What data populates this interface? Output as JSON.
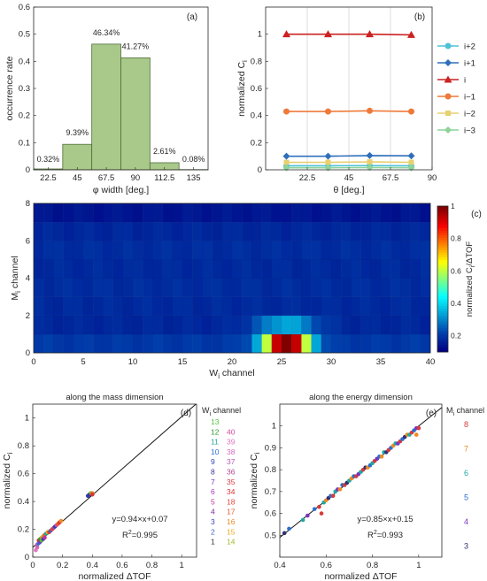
{
  "figure": {
    "panel_labels": [
      "(a)",
      "(b)",
      "(c)",
      "(d)",
      "(e)"
    ]
  },
  "chart_data": [
    {
      "id": "a",
      "type": "bar",
      "categories": [
        "22.5",
        "45",
        "67.5",
        "90",
        "112.5",
        "135"
      ],
      "bin_edges": [
        11.25,
        33.75,
        56.25,
        78.75,
        101.25,
        123.75,
        146.25
      ],
      "values": [
        0.0032,
        0.0939,
        0.4634,
        0.4127,
        0.0261,
        0.0008
      ],
      "data_labels": [
        "0.32%",
        "9.39%",
        "46.34%",
        "41.27%",
        "2.61%",
        "0.08%"
      ],
      "xlabel": "φ width [deg.]",
      "ylabel": "occurrence rate",
      "xlim": [
        11.25,
        146.25
      ],
      "ylim": [
        0,
        0.6
      ],
      "yticks": [
        "0",
        "0.1",
        "0.2",
        "0.3",
        "0.4",
        "0.5",
        "0.6"
      ],
      "bar_color": "#a9c98a",
      "bar_edge": "#4f6b3a"
    },
    {
      "id": "b",
      "type": "line",
      "x": [
        11.25,
        33.75,
        56.25,
        78.75
      ],
      "xticks": [
        "22.5",
        "45",
        "67.5",
        "90"
      ],
      "xlabel": "θ [deg.]",
      "ylabel": "normalized C",
      "ylabel_sub": "i",
      "xlim": [
        0,
        90
      ],
      "ylim": [
        0,
        1.2
      ],
      "yticks": [
        "0",
        "0.2",
        "0.4",
        "0.6",
        "0.8",
        "1"
      ],
      "vgrid": [
        22.5,
        45,
        67.5
      ],
      "legend_position": "right",
      "series": [
        {
          "name": "i+2",
          "color": "#4ec3d6",
          "marker": "circle",
          "values": [
            0.03,
            0.03,
            0.031,
            0.03
          ]
        },
        {
          "name": "i+1",
          "color": "#2f6fba",
          "marker": "diamond",
          "values": [
            0.1,
            0.1,
            0.105,
            0.103
          ]
        },
        {
          "name": "i",
          "color": "#cc2222",
          "marker": "triangle",
          "values": [
            1.0,
            1.0,
            1.0,
            0.995
          ]
        },
        {
          "name": "i−1",
          "color": "#ee7a3a",
          "marker": "circle",
          "values": [
            0.43,
            0.43,
            0.435,
            0.43
          ]
        },
        {
          "name": "i−2",
          "color": "#e7d070",
          "marker": "square",
          "values": [
            0.055,
            0.055,
            0.058,
            0.055
          ]
        },
        {
          "name": "i−3",
          "color": "#8dd39a",
          "marker": "diamond",
          "values": [
            0.015,
            0.015,
            0.017,
            0.015
          ]
        }
      ]
    },
    {
      "id": "c",
      "type": "heatmap",
      "xlabel": "W",
      "xlabel_sub": "i",
      "xlabel_suffix": " channel",
      "ylabel": "M",
      "ylabel_sub": "i",
      "ylabel_suffix": " channel",
      "xlim": [
        0,
        40
      ],
      "ylim": [
        0,
        8
      ],
      "xticks": [
        "0",
        "5",
        "10",
        "15",
        "20",
        "25",
        "30",
        "35",
        "40"
      ],
      "yticks": [
        "0",
        "2",
        "4",
        "6",
        "8"
      ],
      "colorbar_label": "normalized C",
      "colorbar_label_sub": "i",
      "colorbar_label_suffix": "/ΔTOF",
      "colorbar_range": [
        0.1,
        1
      ],
      "colorbar_ticks": [
        "0.2",
        "0.4",
        "0.6",
        "0.8",
        "1"
      ],
      "row_base": [
        0.2,
        0.17,
        0.175,
        0.18,
        0.175,
        0.18,
        0.17,
        0.14
      ],
      "row0_peak": {
        "center": 25.5,
        "width": 2.2,
        "amplitude": 0.9
      },
      "row1_peak": {
        "center": 25.5,
        "width": 3.0,
        "amplitude": 0.17
      }
    },
    {
      "id": "d",
      "type": "scatter",
      "title": "along the mass dimension",
      "xlabel": "normalized ΔTOF",
      "ylabel": "normalized C",
      "ylabel_sub": "i",
      "xlim": [
        0,
        1.1
      ],
      "ylim": [
        0,
        1.1
      ],
      "xticks": [
        "0",
        "0.2",
        "0.4",
        "0.6",
        "0.8",
        "1"
      ],
      "yticks": [
        "0",
        "0.2",
        "0.4",
        "0.6",
        "0.8",
        "1"
      ],
      "fit": {
        "slope": 0.94,
        "intercept": 0.07,
        "equation": "y=0.94×x+0.07",
        "r2_label": "R",
        "r2_sup": "2",
        "r2_value": "=0.995"
      },
      "legend_title": "W",
      "legend_title_sub": "i",
      "legend_title_suffix": " channel",
      "legend": [
        {
          "left": "13",
          "right": "",
          "left_color": "#55c13a",
          "right_color": ""
        },
        {
          "left": "12",
          "right": "40",
          "left_color": "#2e9a2e",
          "right_color": "#d64a9c"
        },
        {
          "left": "11",
          "right": "39",
          "left_color": "#21a7a0",
          "right_color": "#e476c0"
        },
        {
          "left": "10",
          "right": "38",
          "left_color": "#2c6fcf",
          "right_color": "#d06bb8"
        },
        {
          "left": "9",
          "right": "37",
          "left_color": "#2e3fb2",
          "right_color": "#b25ab5"
        },
        {
          "left": "8",
          "right": "36",
          "left_color": "#3a2fa0",
          "right_color": "#b0448c"
        },
        {
          "left": "7",
          "right": "35",
          "left_color": "#7a35c0",
          "right_color": "#d63a3a"
        },
        {
          "left": "6",
          "right": "34",
          "left_color": "#a23ab8",
          "right_color": "#e03030"
        },
        {
          "left": "5",
          "right": "18",
          "left_color": "#c0309a",
          "right_color": "#e2473a"
        },
        {
          "left": "4",
          "right": "17",
          "left_color": "#7a2a9a",
          "right_color": "#ea5a28"
        },
        {
          "left": "3",
          "right": "16",
          "left_color": "#3a44b5",
          "right_color": "#f08a20"
        },
        {
          "left": "2",
          "right": "15",
          "left_color": "#4060c8",
          "right_color": "#f0a81c"
        },
        {
          "left": "1",
          "right": "14",
          "left_color": "#303030",
          "right_color": "#a0b82a"
        }
      ],
      "points": [
        {
          "x": 0.02,
          "y": 0.05,
          "c": "#e476c0"
        },
        {
          "x": 0.03,
          "y": 0.07,
          "c": "#d06bb8"
        },
        {
          "x": 0.03,
          "y": 0.09,
          "c": "#b25ab5"
        },
        {
          "x": 0.04,
          "y": 0.1,
          "c": "#2c6fcf"
        },
        {
          "x": 0.04,
          "y": 0.12,
          "c": "#e03030"
        },
        {
          "x": 0.05,
          "y": 0.11,
          "c": "#7a35c0"
        },
        {
          "x": 0.05,
          "y": 0.13,
          "c": "#2e9a2e"
        },
        {
          "x": 0.06,
          "y": 0.14,
          "c": "#f08a20"
        },
        {
          "x": 0.06,
          "y": 0.12,
          "c": "#55c13a"
        },
        {
          "x": 0.07,
          "y": 0.15,
          "c": "#a0b82a"
        },
        {
          "x": 0.07,
          "y": 0.13,
          "c": "#3a44b5"
        },
        {
          "x": 0.08,
          "y": 0.16,
          "c": "#ea5a28"
        },
        {
          "x": 0.08,
          "y": 0.14,
          "c": "#c0309a"
        },
        {
          "x": 0.09,
          "y": 0.17,
          "c": "#21a7a0"
        },
        {
          "x": 0.1,
          "y": 0.18,
          "c": "#f0a81c"
        },
        {
          "x": 0.11,
          "y": 0.18,
          "c": "#d63a3a"
        },
        {
          "x": 0.12,
          "y": 0.19,
          "c": "#4060c8"
        },
        {
          "x": 0.13,
          "y": 0.2,
          "c": "#e2473a"
        },
        {
          "x": 0.14,
          "y": 0.21,
          "c": "#b0448c"
        },
        {
          "x": 0.15,
          "y": 0.22,
          "c": "#2e3fb2"
        },
        {
          "x": 0.16,
          "y": 0.23,
          "c": "#d64a9c"
        },
        {
          "x": 0.17,
          "y": 0.24,
          "c": "#ea5a28"
        },
        {
          "x": 0.18,
          "y": 0.25,
          "c": "#e03030"
        },
        {
          "x": 0.19,
          "y": 0.26,
          "c": "#f08a20"
        },
        {
          "x": 0.37,
          "y": 0.44,
          "c": "#2e3fb2"
        },
        {
          "x": 0.38,
          "y": 0.45,
          "c": "#3a2fa0"
        },
        {
          "x": 0.39,
          "y": 0.46,
          "c": "#55c13a"
        },
        {
          "x": 0.4,
          "y": 0.46,
          "c": "#f08a20"
        },
        {
          "x": 0.4,
          "y": 0.45,
          "c": "#e03030"
        }
      ]
    },
    {
      "id": "e",
      "type": "scatter",
      "title": "along the energy dimension",
      "xlabel": "normalized ΔTOF",
      "ylabel": "normalized C",
      "ylabel_sub": "i",
      "xlim": [
        0.4,
        1.1
      ],
      "ylim": [
        0.4,
        1.1
      ],
      "xticks": [
        "0.4",
        "0.6",
        "0.8",
        "1"
      ],
      "yticks": [
        "0.5",
        "0.6",
        "0.7",
        "0.8",
        "0.9",
        "1"
      ],
      "fit": {
        "slope": 0.85,
        "intercept": 0.15,
        "equation": "y=0.85×x+0.15",
        "r2_label": "R",
        "r2_sup": "2",
        "r2_value": "=0.993"
      },
      "legend_title": "M",
      "legend_title_sub": "i",
      "legend_title_suffix": " channel",
      "legend": [
        {
          "label": "8",
          "color": "#d63a3a"
        },
        {
          "label": "7",
          "color": "#f08a20"
        },
        {
          "label": "6",
          "color": "#21a7a0"
        },
        {
          "label": "5",
          "color": "#2c6fcf"
        },
        {
          "label": "4",
          "color": "#7a35c0"
        },
        {
          "label": "3",
          "color": "#303070"
        }
      ],
      "points": [
        {
          "x": 0.42,
          "y": 0.51,
          "c": "#303070"
        },
        {
          "x": 0.44,
          "y": 0.53,
          "c": "#2c6fcf"
        },
        {
          "x": 0.5,
          "y": 0.57,
          "c": "#21a7a0"
        },
        {
          "x": 0.52,
          "y": 0.59,
          "c": "#7a35c0"
        },
        {
          "x": 0.55,
          "y": 0.62,
          "c": "#2c6fcf"
        },
        {
          "x": 0.57,
          "y": 0.63,
          "c": "#d63a3a"
        },
        {
          "x": 0.58,
          "y": 0.6,
          "c": "#d63a3a"
        },
        {
          "x": 0.59,
          "y": 0.65,
          "c": "#21a7a0"
        },
        {
          "x": 0.6,
          "y": 0.66,
          "c": "#f08a20"
        },
        {
          "x": 0.61,
          "y": 0.67,
          "c": "#303070"
        },
        {
          "x": 0.62,
          "y": 0.68,
          "c": "#2c6fcf"
        },
        {
          "x": 0.63,
          "y": 0.68,
          "c": "#d63a3a"
        },
        {
          "x": 0.64,
          "y": 0.7,
          "c": "#21a7a0"
        },
        {
          "x": 0.65,
          "y": 0.71,
          "c": "#7a35c0"
        },
        {
          "x": 0.66,
          "y": 0.71,
          "c": "#f08a20"
        },
        {
          "x": 0.67,
          "y": 0.73,
          "c": "#2c6fcf"
        },
        {
          "x": 0.68,
          "y": 0.73,
          "c": "#d63a3a"
        },
        {
          "x": 0.69,
          "y": 0.74,
          "c": "#303070"
        },
        {
          "x": 0.7,
          "y": 0.75,
          "c": "#21a7a0"
        },
        {
          "x": 0.71,
          "y": 0.76,
          "c": "#f08a20"
        },
        {
          "x": 0.72,
          "y": 0.77,
          "c": "#2c6fcf"
        },
        {
          "x": 0.73,
          "y": 0.77,
          "c": "#d63a3a"
        },
        {
          "x": 0.74,
          "y": 0.78,
          "c": "#7a35c0"
        },
        {
          "x": 0.75,
          "y": 0.79,
          "c": "#21a7a0"
        },
        {
          "x": 0.76,
          "y": 0.8,
          "c": "#d63a3a"
        },
        {
          "x": 0.77,
          "y": 0.81,
          "c": "#303070"
        },
        {
          "x": 0.78,
          "y": 0.81,
          "c": "#f08a20"
        },
        {
          "x": 0.79,
          "y": 0.82,
          "c": "#2c6fcf"
        },
        {
          "x": 0.8,
          "y": 0.83,
          "c": "#21a7a0"
        },
        {
          "x": 0.81,
          "y": 0.84,
          "c": "#d63a3a"
        },
        {
          "x": 0.82,
          "y": 0.85,
          "c": "#7a35c0"
        },
        {
          "x": 0.83,
          "y": 0.86,
          "c": "#2c6fcf"
        },
        {
          "x": 0.84,
          "y": 0.86,
          "c": "#f08a20"
        },
        {
          "x": 0.85,
          "y": 0.88,
          "c": "#21a7a0"
        },
        {
          "x": 0.86,
          "y": 0.88,
          "c": "#303070"
        },
        {
          "x": 0.87,
          "y": 0.89,
          "c": "#d63a3a"
        },
        {
          "x": 0.88,
          "y": 0.9,
          "c": "#2c6fcf"
        },
        {
          "x": 0.89,
          "y": 0.91,
          "c": "#f08a20"
        },
        {
          "x": 0.9,
          "y": 0.92,
          "c": "#21a7a0"
        },
        {
          "x": 0.91,
          "y": 0.92,
          "c": "#7a35c0"
        },
        {
          "x": 0.92,
          "y": 0.93,
          "c": "#d63a3a"
        },
        {
          "x": 0.93,
          "y": 0.94,
          "c": "#2c6fcf"
        },
        {
          "x": 0.94,
          "y": 0.95,
          "c": "#303070"
        },
        {
          "x": 0.95,
          "y": 0.96,
          "c": "#f08a20"
        },
        {
          "x": 0.96,
          "y": 0.96,
          "c": "#21a7a0"
        },
        {
          "x": 0.97,
          "y": 0.97,
          "c": "#d63a3a"
        },
        {
          "x": 0.98,
          "y": 0.98,
          "c": "#2c6fcf"
        },
        {
          "x": 0.99,
          "y": 0.99,
          "c": "#7a35c0"
        },
        {
          "x": 0.99,
          "y": 0.96,
          "c": "#f08a20"
        },
        {
          "x": 1.0,
          "y": 0.99,
          "c": "#d63a3a"
        }
      ]
    }
  ]
}
